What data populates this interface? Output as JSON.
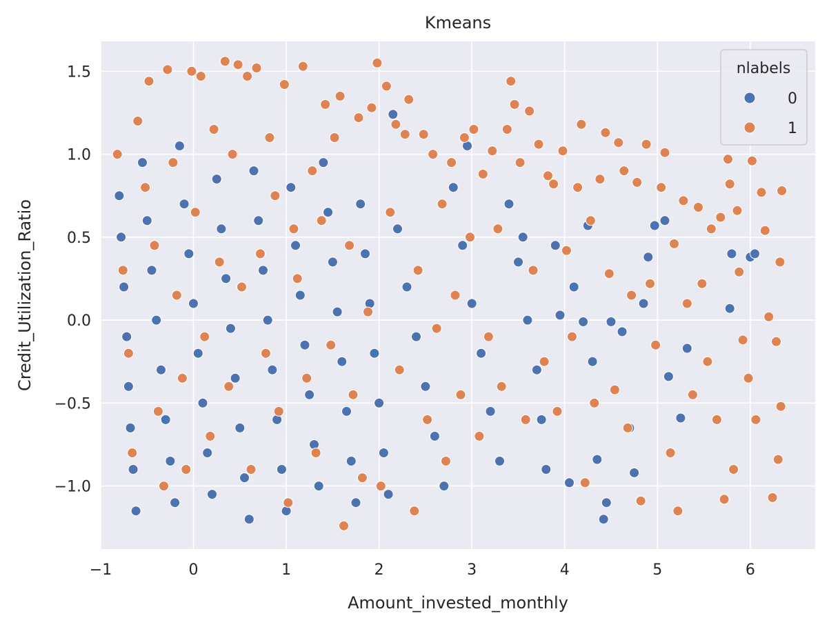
{
  "chart_data": {
    "type": "scatter",
    "title": "Kmeans",
    "xlabel": "Amount_invested_monthly",
    "ylabel": "Credit_Utilization_Ratio",
    "xlim": [
      -1.0,
      6.7
    ],
    "ylim": [
      -1.38,
      1.68
    ],
    "x_ticks": [
      -1,
      0,
      1,
      2,
      3,
      4,
      5,
      6
    ],
    "x_tick_labels": [
      "−1",
      "0",
      "1",
      "2",
      "3",
      "4",
      "5",
      "6"
    ],
    "y_ticks": [
      -1.0,
      -0.5,
      0.0,
      0.5,
      1.0,
      1.5
    ],
    "y_tick_labels": [
      "−1.0",
      "−0.5",
      "0.0",
      "0.5",
      "1.0",
      "1.5"
    ],
    "grid": true,
    "legend": {
      "title": "nlabels",
      "placement": "top-right",
      "entries": [
        {
          "label": "0",
          "color": "#4c72b0"
        },
        {
          "label": "1",
          "color": "#dd8452"
        }
      ]
    },
    "series": [
      {
        "name": "0",
        "color": "#4c72b0",
        "points": [
          [
            -0.8,
            0.75
          ],
          [
            -0.78,
            0.5
          ],
          [
            -0.75,
            0.2
          ],
          [
            -0.72,
            -0.1
          ],
          [
            -0.7,
            -0.4
          ],
          [
            -0.68,
            -0.65
          ],
          [
            -0.65,
            -0.9
          ],
          [
            -0.62,
            -1.15
          ],
          [
            -0.55,
            0.95
          ],
          [
            -0.5,
            0.6
          ],
          [
            -0.45,
            0.3
          ],
          [
            -0.4,
            0.0
          ],
          [
            -0.35,
            -0.3
          ],
          [
            -0.3,
            -0.6
          ],
          [
            -0.25,
            -0.85
          ],
          [
            -0.2,
            -1.1
          ],
          [
            -0.15,
            1.05
          ],
          [
            -0.1,
            0.7
          ],
          [
            -0.05,
            0.4
          ],
          [
            0.0,
            0.1
          ],
          [
            0.05,
            -0.2
          ],
          [
            0.1,
            -0.5
          ],
          [
            0.15,
            -0.8
          ],
          [
            0.2,
            -1.05
          ],
          [
            0.25,
            0.85
          ],
          [
            0.3,
            0.55
          ],
          [
            0.35,
            0.25
          ],
          [
            0.4,
            -0.05
          ],
          [
            0.45,
            -0.35
          ],
          [
            0.5,
            -0.65
          ],
          [
            0.55,
            -0.95
          ],
          [
            0.6,
            -1.2
          ],
          [
            0.65,
            0.9
          ],
          [
            0.7,
            0.6
          ],
          [
            0.75,
            0.3
          ],
          [
            0.8,
            0.0
          ],
          [
            0.85,
            -0.3
          ],
          [
            0.9,
            -0.6
          ],
          [
            0.95,
            -0.9
          ],
          [
            1.0,
            -1.15
          ],
          [
            1.05,
            0.8
          ],
          [
            1.1,
            0.45
          ],
          [
            1.15,
            0.15
          ],
          [
            1.2,
            -0.15
          ],
          [
            1.25,
            -0.45
          ],
          [
            1.3,
            -0.75
          ],
          [
            1.35,
            -1.0
          ],
          [
            1.4,
            0.95
          ],
          [
            1.45,
            0.65
          ],
          [
            1.5,
            0.35
          ],
          [
            1.55,
            0.05
          ],
          [
            1.6,
            -0.25
          ],
          [
            1.65,
            -0.55
          ],
          [
            1.7,
            -0.85
          ],
          [
            1.75,
            -1.1
          ],
          [
            1.8,
            0.7
          ],
          [
            1.85,
            0.4
          ],
          [
            1.9,
            0.1
          ],
          [
            1.95,
            -0.2
          ],
          [
            2.0,
            -0.5
          ],
          [
            2.05,
            -0.8
          ],
          [
            2.1,
            -1.05
          ],
          [
            2.15,
            1.24
          ],
          [
            2.2,
            0.55
          ],
          [
            2.3,
            0.2
          ],
          [
            2.4,
            -0.1
          ],
          [
            2.5,
            -0.4
          ],
          [
            2.6,
            -0.7
          ],
          [
            2.7,
            -1.0
          ],
          [
            2.8,
            0.8
          ],
          [
            2.9,
            0.45
          ],
          [
            2.95,
            1.05
          ],
          [
            3.0,
            0.1
          ],
          [
            3.1,
            -0.2
          ],
          [
            3.2,
            -0.55
          ],
          [
            3.3,
            -0.85
          ],
          [
            3.4,
            0.7
          ],
          [
            3.5,
            0.35
          ],
          [
            3.55,
            0.5
          ],
          [
            3.6,
            0.0
          ],
          [
            3.7,
            -0.3
          ],
          [
            3.75,
            -0.6
          ],
          [
            3.8,
            -0.9
          ],
          [
            3.9,
            0.45
          ],
          [
            3.95,
            0.03
          ],
          [
            4.05,
            -0.98
          ],
          [
            4.1,
            0.2
          ],
          [
            4.2,
            -0.01
          ],
          [
            4.25,
            0.57
          ],
          [
            4.3,
            -0.25
          ],
          [
            4.35,
            -0.84
          ],
          [
            4.42,
            -1.2
          ],
          [
            4.45,
            -1.1
          ],
          [
            4.5,
            -0.01
          ],
          [
            4.62,
            -0.07
          ],
          [
            4.7,
            -0.65
          ],
          [
            4.75,
            -0.92
          ],
          [
            4.85,
            0.1
          ],
          [
            4.9,
            0.38
          ],
          [
            4.97,
            0.57
          ],
          [
            5.08,
            0.6
          ],
          [
            5.12,
            -0.34
          ],
          [
            5.25,
            -0.59
          ],
          [
            5.32,
            -0.17
          ],
          [
            5.8,
            0.4
          ],
          [
            5.78,
            0.07
          ],
          [
            6.0,
            0.38
          ],
          [
            6.05,
            0.4
          ]
        ]
      },
      {
        "name": "1",
        "color": "#dd8452",
        "points": [
          [
            -0.82,
            1.0
          ],
          [
            -0.76,
            0.3
          ],
          [
            -0.7,
            -0.2
          ],
          [
            -0.66,
            -0.8
          ],
          [
            -0.6,
            1.2
          ],
          [
            -0.52,
            0.8
          ],
          [
            -0.48,
            1.44
          ],
          [
            -0.42,
            0.45
          ],
          [
            -0.38,
            -0.55
          ],
          [
            -0.32,
            -1.0
          ],
          [
            -0.28,
            1.51
          ],
          [
            -0.22,
            0.95
          ],
          [
            -0.18,
            0.15
          ],
          [
            -0.12,
            -0.35
          ],
          [
            -0.08,
            -0.9
          ],
          [
            -0.02,
            1.5
          ],
          [
            0.02,
            0.65
          ],
          [
            0.08,
            1.47
          ],
          [
            0.12,
            -0.1
          ],
          [
            0.18,
            -0.7
          ],
          [
            0.22,
            1.15
          ],
          [
            0.28,
            0.35
          ],
          [
            0.34,
            1.56
          ],
          [
            0.38,
            -0.4
          ],
          [
            0.42,
            1.0
          ],
          [
            0.48,
            1.54
          ],
          [
            0.52,
            0.2
          ],
          [
            0.58,
            1.47
          ],
          [
            0.62,
            -0.9
          ],
          [
            0.68,
            1.52
          ],
          [
            0.72,
            0.4
          ],
          [
            0.78,
            -0.2
          ],
          [
            0.82,
            1.1
          ],
          [
            0.88,
            0.75
          ],
          [
            0.92,
            -0.55
          ],
          [
            0.98,
            1.42
          ],
          [
            1.02,
            -1.1
          ],
          [
            1.08,
            0.55
          ],
          [
            1.12,
            0.25
          ],
          [
            1.18,
            1.53
          ],
          [
            1.22,
            -0.35
          ],
          [
            1.28,
            0.9
          ],
          [
            1.32,
            -0.8
          ],
          [
            1.38,
            0.6
          ],
          [
            1.42,
            1.3
          ],
          [
            1.48,
            -0.15
          ],
          [
            1.52,
            1.1
          ],
          [
            1.58,
            1.35
          ],
          [
            1.62,
            -1.24
          ],
          [
            1.68,
            0.45
          ],
          [
            1.72,
            -0.45
          ],
          [
            1.78,
            1.22
          ],
          [
            1.82,
            -0.95
          ],
          [
            1.88,
            0.05
          ],
          [
            1.92,
            1.28
          ],
          [
            1.98,
            1.55
          ],
          [
            2.02,
            -1.0
          ],
          [
            2.08,
            1.41
          ],
          [
            2.12,
            0.65
          ],
          [
            2.18,
            1.18
          ],
          [
            2.22,
            -0.3
          ],
          [
            2.28,
            1.12
          ],
          [
            2.32,
            1.33
          ],
          [
            2.38,
            -1.15
          ],
          [
            2.42,
            0.3
          ],
          [
            2.48,
            1.12
          ],
          [
            2.52,
            -0.6
          ],
          [
            2.58,
            1.0
          ],
          [
            2.62,
            -0.05
          ],
          [
            2.68,
            0.7
          ],
          [
            2.72,
            -0.85
          ],
          [
            2.78,
            0.95
          ],
          [
            2.82,
            0.15
          ],
          [
            2.88,
            -0.45
          ],
          [
            2.92,
            1.1
          ],
          [
            2.98,
            0.5
          ],
          [
            3.02,
            1.15
          ],
          [
            3.08,
            -0.7
          ],
          [
            3.12,
            0.88
          ],
          [
            3.18,
            -0.1
          ],
          [
            3.22,
            1.02
          ],
          [
            3.28,
            0.55
          ],
          [
            3.32,
            -0.4
          ],
          [
            3.38,
            1.15
          ],
          [
            3.42,
            1.44
          ],
          [
            3.46,
            1.3
          ],
          [
            3.52,
            0.95
          ],
          [
            3.58,
            -0.6
          ],
          [
            3.62,
            1.26
          ],
          [
            3.66,
            0.3
          ],
          [
            3.72,
            1.06
          ],
          [
            3.78,
            -0.25
          ],
          [
            3.82,
            0.87
          ],
          [
            3.88,
            0.82
          ],
          [
            3.92,
            -0.55
          ],
          [
            3.98,
            1.02
          ],
          [
            4.02,
            0.42
          ],
          [
            4.08,
            -0.1
          ],
          [
            4.14,
            0.8
          ],
          [
            4.18,
            1.18
          ],
          [
            4.22,
            -0.98
          ],
          [
            4.28,
            0.6
          ],
          [
            4.32,
            -0.5
          ],
          [
            4.38,
            0.85
          ],
          [
            4.44,
            1.13
          ],
          [
            4.48,
            0.28
          ],
          [
            4.54,
            -0.42
          ],
          [
            4.58,
            1.07
          ],
          [
            4.64,
            0.9
          ],
          [
            4.68,
            -0.65
          ],
          [
            4.72,
            0.15
          ],
          [
            4.78,
            0.83
          ],
          [
            4.82,
            -1.09
          ],
          [
            4.88,
            1.06
          ],
          [
            4.92,
            0.22
          ],
          [
            4.98,
            -0.15
          ],
          [
            5.04,
            0.8
          ],
          [
            5.08,
            1.01
          ],
          [
            5.14,
            -0.8
          ],
          [
            5.18,
            0.46
          ],
          [
            5.22,
            -1.15
          ],
          [
            5.28,
            0.72
          ],
          [
            5.32,
            0.1
          ],
          [
            5.38,
            -0.45
          ],
          [
            5.44,
            0.68
          ],
          [
            5.48,
            0.22
          ],
          [
            5.54,
            -0.25
          ],
          [
            5.58,
            0.55
          ],
          [
            5.64,
            -0.6
          ],
          [
            5.68,
            0.62
          ],
          [
            5.72,
            -1.08
          ],
          [
            5.76,
            0.97
          ],
          [
            5.78,
            0.82
          ],
          [
            5.82,
            -0.9
          ],
          [
            5.86,
            0.66
          ],
          [
            5.88,
            0.29
          ],
          [
            5.92,
            -0.12
          ],
          [
            5.98,
            -0.35
          ],
          [
            6.02,
            0.96
          ],
          [
            6.06,
            -0.6
          ],
          [
            6.12,
            0.77
          ],
          [
            6.16,
            0.54
          ],
          [
            6.2,
            0.02
          ],
          [
            6.24,
            -1.07
          ],
          [
            6.28,
            -0.13
          ],
          [
            6.3,
            -0.84
          ],
          [
            6.32,
            0.35
          ],
          [
            6.34,
            0.78
          ],
          [
            6.33,
            -0.52
          ]
        ]
      }
    ]
  }
}
